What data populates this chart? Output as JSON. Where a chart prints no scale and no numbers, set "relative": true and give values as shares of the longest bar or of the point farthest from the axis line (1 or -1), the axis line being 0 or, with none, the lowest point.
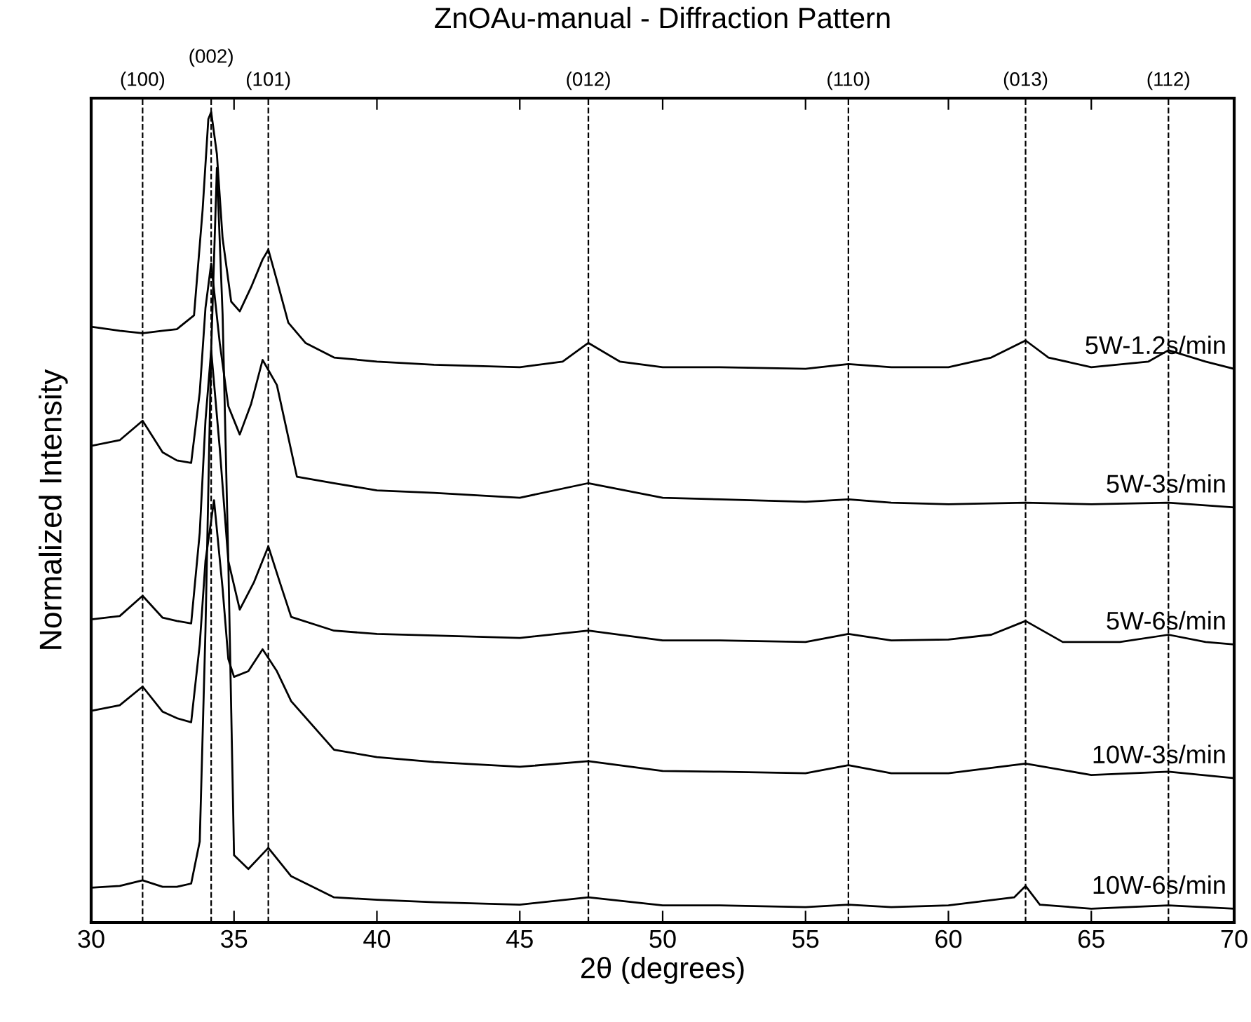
{
  "chart_data": {
    "type": "line",
    "title": "ZnOAu-manual - Diffraction Pattern",
    "xlabel": "2θ (degrees)",
    "ylabel": "Normalized Intensity",
    "relative": true,
    "xlim": [
      30,
      70
    ],
    "xticks": [
      30,
      35,
      40,
      45,
      50,
      55,
      60,
      65,
      70
    ],
    "grid": false,
    "marker": "none",
    "line_style": "solid",
    "ref_lines": [
      {
        "axis": "x",
        "value": 31.8,
        "line_style": "dashed",
        "color": "#000000"
      },
      {
        "axis": "x",
        "value": 34.2,
        "line_style": "dashed",
        "color": "#000000"
      },
      {
        "axis": "x",
        "value": 36.2,
        "line_style": "dashed",
        "color": "#000000"
      },
      {
        "axis": "x",
        "value": 47.4,
        "line_style": "dashed",
        "color": "#000000"
      },
      {
        "axis": "x",
        "value": 56.5,
        "line_style": "dashed",
        "color": "#000000"
      },
      {
        "axis": "x",
        "value": 62.7,
        "line_style": "dashed",
        "color": "#000000"
      },
      {
        "axis": "x",
        "value": 67.7,
        "line_style": "dashed",
        "color": "#000000"
      }
    ],
    "annotations": [
      "(100)",
      "(002)",
      "(101)",
      "(012)",
      "(110)",
      "(013)",
      "(112)"
    ],
    "series": [
      {
        "name": "5W-1.2s/min",
        "color": "#000000",
        "x": [
          30,
          31,
          31.8,
          32.5,
          33,
          33.6,
          33.9,
          34.1,
          34.2,
          34.4,
          34.6,
          34.9,
          35.2,
          35.6,
          36,
          36.2,
          36.5,
          36.9,
          37.5,
          38.5,
          40,
          42,
          45,
          46.5,
          47.4,
          48.5,
          50,
          52,
          55,
          56.5,
          58,
          60,
          61.5,
          62.7,
          63.5,
          65,
          67,
          67.7,
          69,
          70
        ],
        "values": [
          0.735,
          0.73,
          0.727,
          0.73,
          0.732,
          0.749,
          0.879,
          0.991,
          1.0,
          0.948,
          0.844,
          0.766,
          0.754,
          0.784,
          0.818,
          0.83,
          0.792,
          0.74,
          0.715,
          0.697,
          0.692,
          0.688,
          0.685,
          0.692,
          0.715,
          0.692,
          0.685,
          0.685,
          0.683,
          0.689,
          0.685,
          0.685,
          0.697,
          0.718,
          0.697,
          0.685,
          0.692,
          0.706,
          0.692,
          0.683
        ]
      },
      {
        "name": "5W-3s/min",
        "color": "#000000",
        "x": [
          30,
          31,
          31.8,
          32.5,
          33,
          33.5,
          33.8,
          34,
          34.2,
          34.5,
          34.8,
          35.2,
          35.6,
          36,
          36.5,
          37.2,
          38.5,
          40,
          42,
          45,
          47.4,
          50,
          52,
          55,
          56.5,
          58,
          60,
          62.7,
          65,
          67.7,
          70
        ],
        "values": [
          0.588,
          0.595,
          0.619,
          0.58,
          0.57,
          0.567,
          0.654,
          0.758,
          0.813,
          0.715,
          0.637,
          0.602,
          0.64,
          0.694,
          0.663,
          0.55,
          0.542,
          0.533,
          0.53,
          0.524,
          0.542,
          0.524,
          0.522,
          0.519,
          0.522,
          0.518,
          0.516,
          0.518,
          0.516,
          0.518,
          0.512
        ]
      },
      {
        "name": "5W-6s/min",
        "color": "#000000",
        "x": [
          30,
          31,
          31.8,
          32.5,
          33,
          33.5,
          33.8,
          34,
          34.2,
          34.5,
          34.8,
          35.2,
          35.7,
          36.2,
          36.6,
          37,
          38.5,
          40,
          42,
          45,
          47.4,
          50,
          52,
          55,
          56.5,
          58,
          60,
          61.5,
          62.7,
          64,
          66,
          67.7,
          69,
          70
        ],
        "values": [
          0.374,
          0.378,
          0.403,
          0.376,
          0.372,
          0.369,
          0.481,
          0.619,
          0.706,
          0.585,
          0.446,
          0.386,
          0.42,
          0.464,
          0.42,
          0.377,
          0.36,
          0.356,
          0.354,
          0.351,
          0.36,
          0.348,
          0.348,
          0.346,
          0.356,
          0.348,
          0.349,
          0.355,
          0.372,
          0.346,
          0.346,
          0.355,
          0.346,
          0.343
        ]
      },
      {
        "name": "10W-3s/min",
        "color": "#000000",
        "x": [
          30,
          31,
          31.8,
          32.5,
          33,
          33.5,
          33.8,
          34,
          34.3,
          34.6,
          34.8,
          35,
          35.5,
          36,
          36.5,
          37,
          38.5,
          40,
          42,
          45,
          47.4,
          50,
          52,
          55,
          56.5,
          58,
          60,
          62.7,
          65,
          67.7,
          70
        ],
        "values": [
          0.261,
          0.268,
          0.291,
          0.26,
          0.252,
          0.247,
          0.343,
          0.446,
          0.521,
          0.412,
          0.325,
          0.303,
          0.31,
          0.337,
          0.31,
          0.273,
          0.213,
          0.204,
          0.198,
          0.192,
          0.199,
          0.187,
          0.186,
          0.184,
          0.194,
          0.184,
          0.184,
          0.196,
          0.182,
          0.186,
          0.178
        ]
      },
      {
        "name": "10W-6s/min",
        "color": "#000000",
        "x": [
          30,
          31,
          31.8,
          32.5,
          33,
          33.5,
          33.8,
          34,
          34.2,
          34.4,
          34.6,
          34.8,
          35,
          35.5,
          36.2,
          37,
          38.5,
          40,
          42,
          45,
          47.4,
          50,
          52,
          55,
          56.5,
          58,
          60,
          62.3,
          62.7,
          63.2,
          65,
          67.7,
          70
        ],
        "values": [
          0.043,
          0.045,
          0.052,
          0.044,
          0.044,
          0.048,
          0.1,
          0.36,
          0.706,
          0.931,
          0.75,
          0.446,
          0.083,
          0.066,
          0.092,
          0.057,
          0.031,
          0.028,
          0.025,
          0.022,
          0.031,
          0.021,
          0.021,
          0.019,
          0.022,
          0.019,
          0.021,
          0.031,
          0.045,
          0.022,
          0.017,
          0.021,
          0.017
        ]
      }
    ]
  }
}
